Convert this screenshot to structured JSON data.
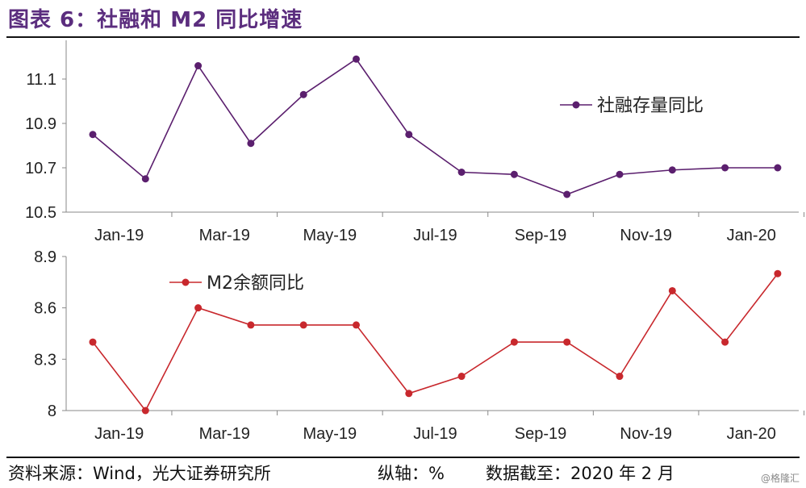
{
  "title": "图表 6：社融和 M2 同比增速",
  "footer": {
    "source": "资料来源：Wind，光大证券研究所",
    "axis_unit": "纵轴：%",
    "cutoff": "数据截至：2020 年 2 月"
  },
  "watermark": "@格隆汇",
  "chart_data": [
    {
      "type": "line",
      "title": "",
      "x": [
        "Jan-19",
        "Feb-19",
        "Mar-19",
        "Apr-19",
        "May-19",
        "Jun-19",
        "Jul-19",
        "Aug-19",
        "Sep-19",
        "Oct-19",
        "Nov-19",
        "Dec-19",
        "Jan-20",
        "Feb-20"
      ],
      "x_tick_labels": [
        "Jan-19",
        "Mar-19",
        "May-19",
        "Jul-19",
        "Sep-19",
        "Nov-19",
        "Jan-20"
      ],
      "ylim": [
        10.5,
        11.2
      ],
      "y_ticks": [
        "10.5",
        "10.7",
        "10.9",
        "11.1"
      ],
      "xlabel": "",
      "ylabel": "",
      "grid": false,
      "legend": "right",
      "series": [
        {
          "name": "社融存量同比",
          "color": "#5b1f6e",
          "values": [
            10.85,
            10.65,
            11.16,
            10.81,
            11.03,
            11.19,
            10.85,
            10.68,
            10.67,
            10.58,
            10.67,
            10.69,
            10.7,
            10.7
          ]
        }
      ]
    },
    {
      "type": "line",
      "title": "",
      "x": [
        "Jan-19",
        "Feb-19",
        "Mar-19",
        "Apr-19",
        "May-19",
        "Jun-19",
        "Jul-19",
        "Aug-19",
        "Sep-19",
        "Oct-19",
        "Nov-19",
        "Dec-19",
        "Jan-20",
        "Feb-20"
      ],
      "x_tick_labels": [
        "Jan-19",
        "Mar-19",
        "May-19",
        "Jul-19",
        "Sep-19",
        "Nov-19",
        "Jan-20"
      ],
      "ylim": [
        8,
        8.9
      ],
      "y_ticks": [
        "8",
        "8.3",
        "8.6",
        "8.9"
      ],
      "xlabel": "",
      "ylabel": "",
      "grid": false,
      "legend": "top-left",
      "series": [
        {
          "name": "M2余额同比",
          "color": "#c8282d",
          "values": [
            8.4,
            8.0,
            8.6,
            8.5,
            8.5,
            8.5,
            8.1,
            8.2,
            8.4,
            8.4,
            8.2,
            8.7,
            8.4,
            8.8
          ]
        }
      ]
    }
  ]
}
